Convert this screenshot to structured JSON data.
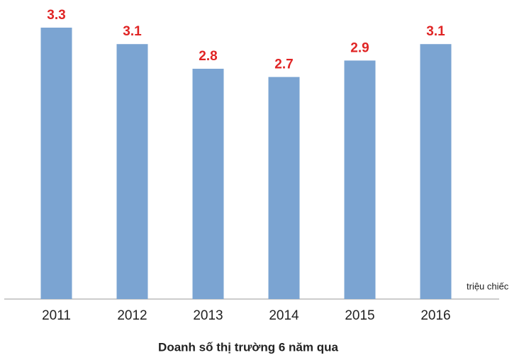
{
  "chart_data": {
    "type": "bar",
    "title": "Doanh số thị trường 6 năm qua",
    "y_label": "triệu chiếc",
    "categories": [
      "2011",
      "2012",
      "2013",
      "2014",
      "2015",
      "2016"
    ],
    "values": [
      3.3,
      3.1,
      2.8,
      2.7,
      2.9,
      3.1
    ],
    "color": "#7ba4d2",
    "value_label_color": "#e02424",
    "ylim": [
      0,
      3.3
    ],
    "grid": false
  }
}
